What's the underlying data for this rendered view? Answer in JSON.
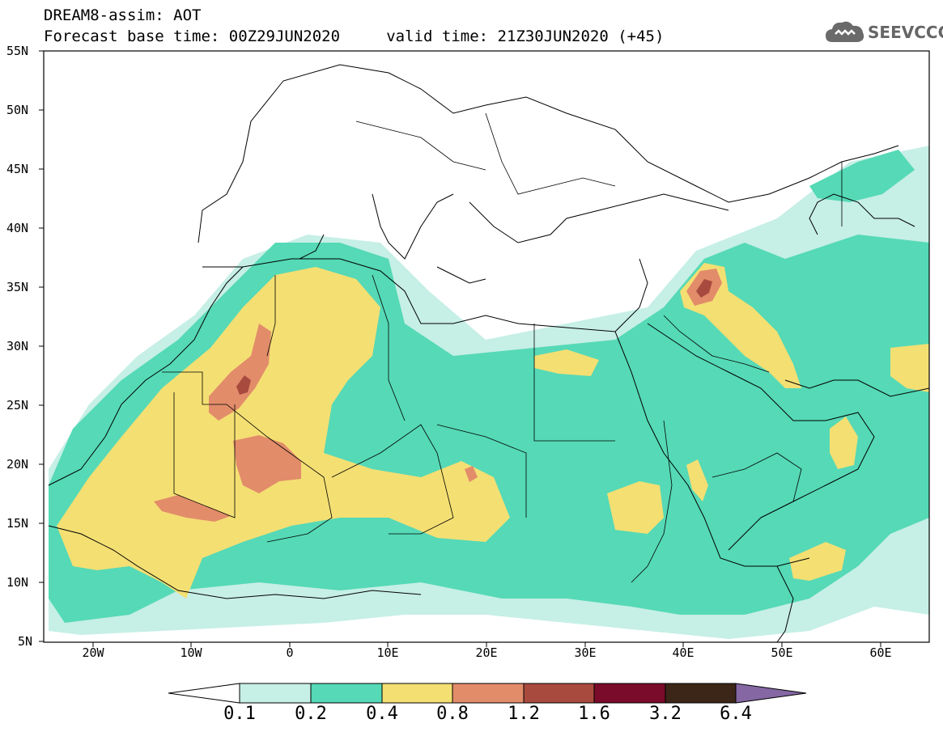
{
  "header": {
    "title_line1": "DREAM8-assim: AOT",
    "title_line2": "Forecast base time: 00Z29JUN2020     valid time: 21Z30JUN2020 (+45)"
  },
  "logo": {
    "text": "SEEVCCC",
    "icon": "cloud-icon"
  },
  "map": {
    "lat_labels": [
      "55N",
      "50N",
      "45N",
      "40N",
      "35N",
      "30N",
      "25N",
      "20N",
      "15N",
      "10N",
      "5N"
    ],
    "lon_labels": [
      "20W",
      "10W",
      "0",
      "10E",
      "20E",
      "30E",
      "40E",
      "50E",
      "60E"
    ],
    "extent": {
      "lon_min": -25,
      "lon_max": 65,
      "lat_min": 5,
      "lat_max": 55
    }
  },
  "colorbar": {
    "labels": [
      "0.1",
      "0.2",
      "0.4",
      "0.8",
      "1.2",
      "1.6",
      "3.2",
      "6.4"
    ],
    "colors": [
      "#ffffff",
      "#c6efe6",
      "#55d9b6",
      "#f4df73",
      "#e28c6a",
      "#a94a3e",
      "#7a0b2a",
      "#3c2618",
      "#8467a3"
    ]
  }
}
